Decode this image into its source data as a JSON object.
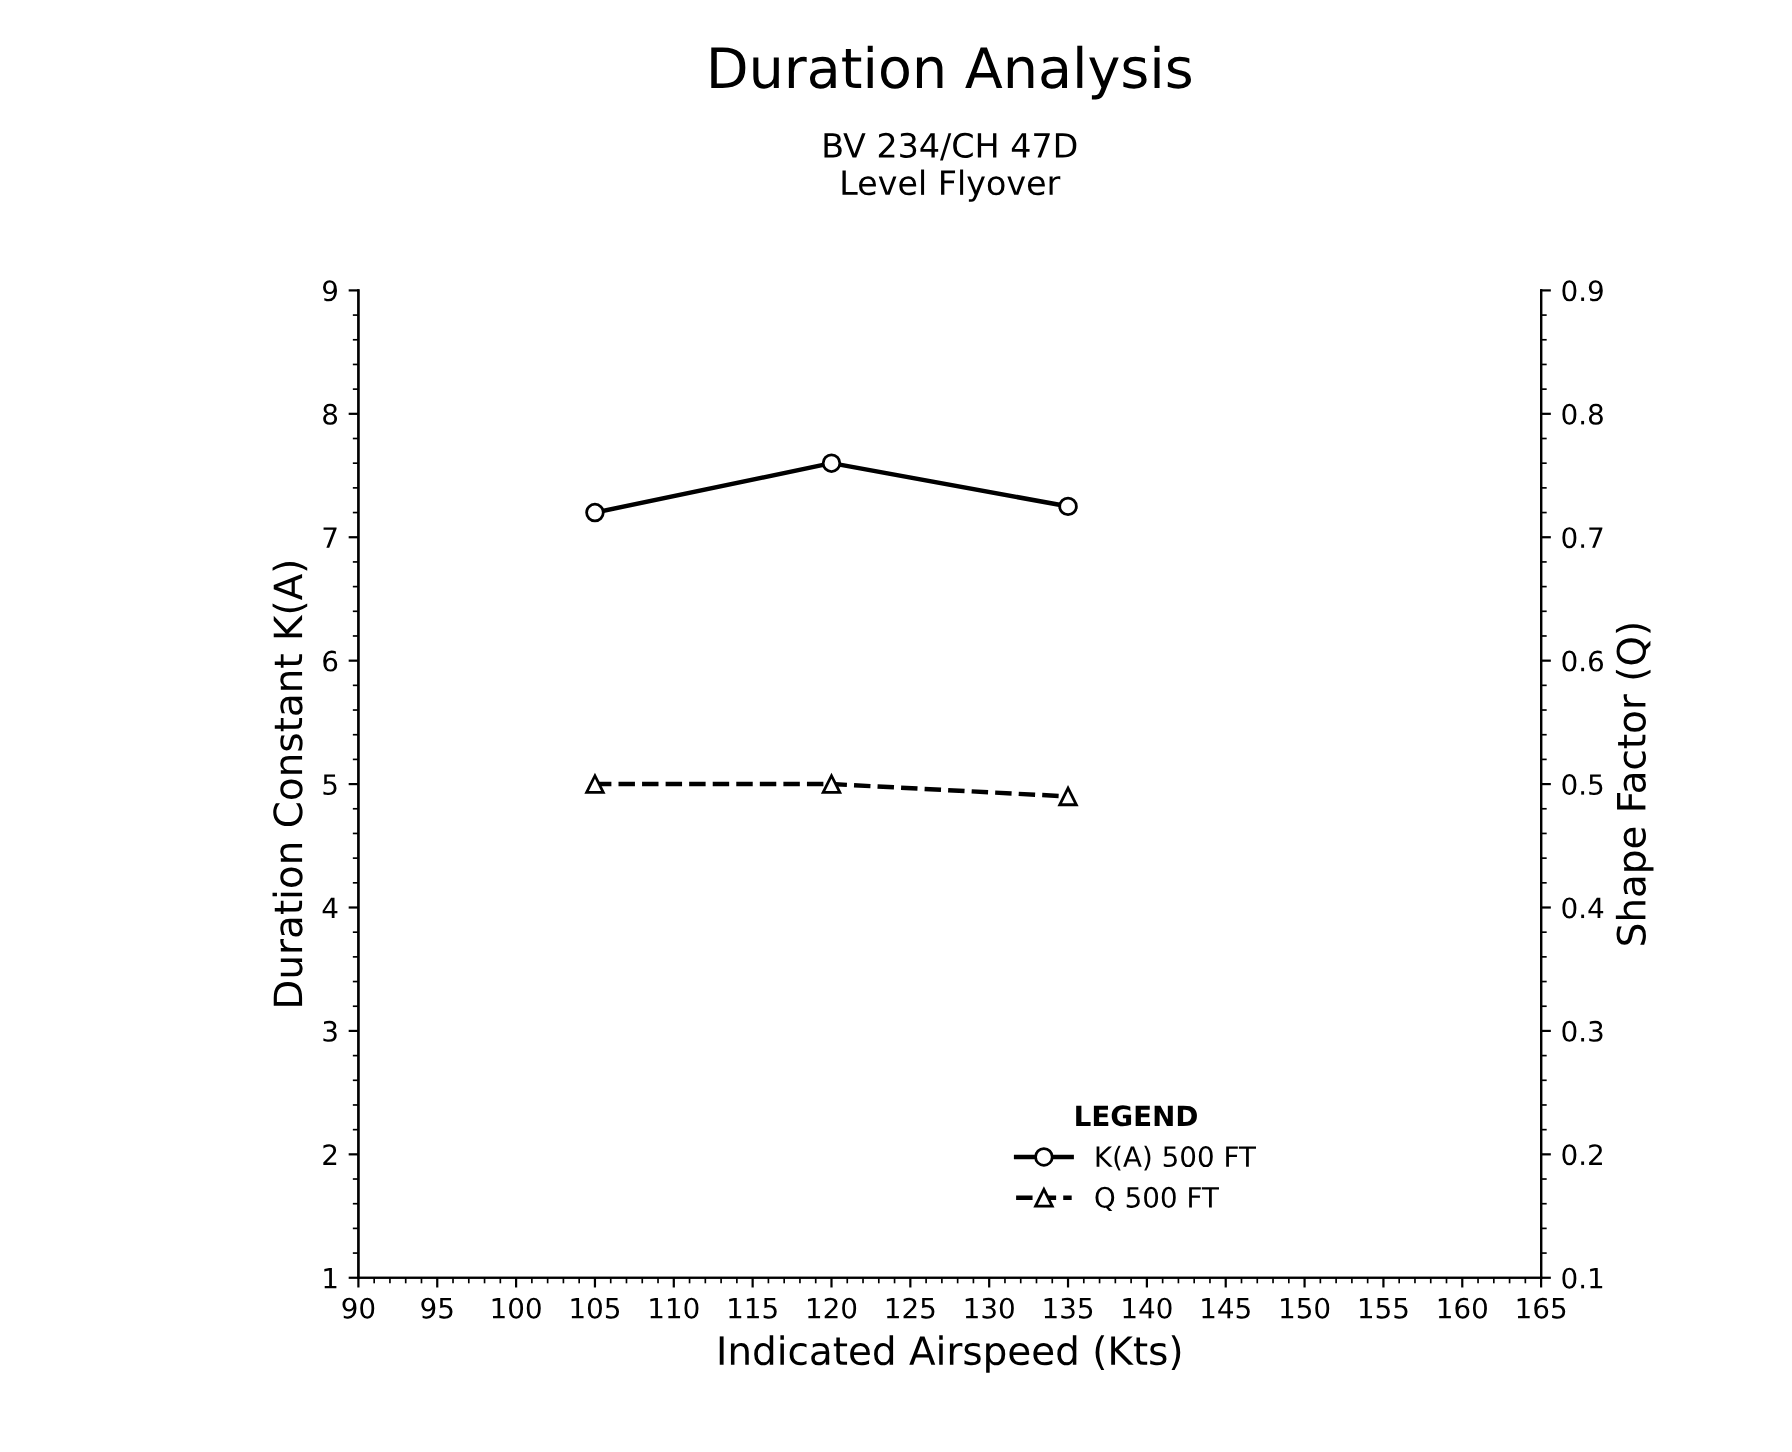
{
  "chart_data": {
    "type": "line",
    "title": "Duration Analysis",
    "subtitle": "BV 234/CH 47D\nLevel Flyover",
    "xlabel": "Indicated Airspeed (Kts)",
    "ylabel": "Duration Constant K(A)",
    "y2label": "Shape Factor (Q)",
    "legend_title": "LEGEND",
    "legend": "bottom right",
    "x": [
      105,
      120,
      135
    ],
    "series": [
      {
        "name": "K(A) 500 FT",
        "color": "#000000",
        "values": [
          7.2,
          7.6,
          7.25
        ],
        "marker": "circle",
        "line_style": "solid"
      },
      {
        "name": "Q 500 FT",
        "color": "#000000",
        "values": [
          0.5,
          0.5,
          0.49
        ],
        "marker": "triangle",
        "line_style": "dashed",
        "axis": "y2"
      }
    ],
    "xlim": [
      90,
      165
    ],
    "xticks": [
      90,
      95,
      100,
      105,
      110,
      115,
      120,
      125,
      130,
      135,
      140,
      145,
      150,
      155,
      160,
      165
    ],
    "ylim": [
      1,
      9
    ],
    "yticks": [
      1,
      2,
      3,
      4,
      5,
      6,
      7,
      8,
      9
    ],
    "y2lim": [
      0.1,
      0.9
    ],
    "y2ticks": [
      0.1,
      0.2,
      0.3,
      0.4,
      0.5,
      0.6,
      0.7,
      0.8,
      0.9
    ],
    "grid": false
  }
}
